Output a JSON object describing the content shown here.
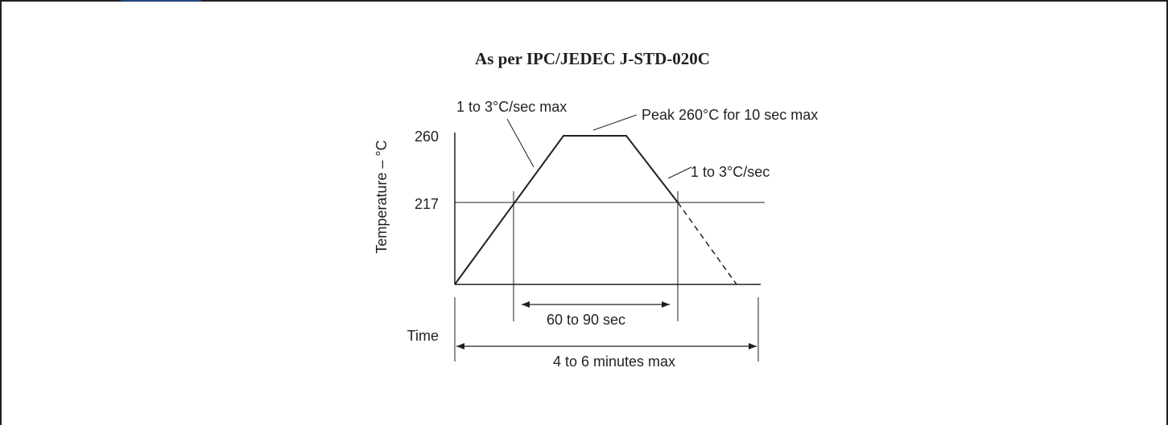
{
  "title": "As per IPC/JEDEC J-STD-020C",
  "y_axis_label": "Temperature  – °C",
  "x_axis_label": "Time",
  "ticks": {
    "peak": "260",
    "liquidus": "217"
  },
  "annotations": {
    "ramp_up": "1 to 3°C/sec max",
    "peak": "Peak 260°C for 10 sec max",
    "ramp_down": "1 to 3°C/sec",
    "time_above_liquidus": "60 to 90 sec",
    "total_time": "4 to 6 minutes max"
  },
  "colors": {
    "line": "#231f20",
    "frame_top": "#1f4e9a",
    "frame": "#231f20"
  }
}
